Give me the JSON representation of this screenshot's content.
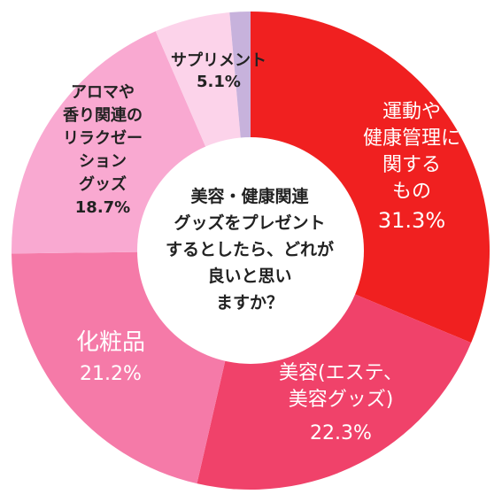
{
  "chart_data": {
    "type": "pie",
    "variant": "donut",
    "center_text": [
      "美容・健康関連",
      "グッズをプレゼント",
      "するとしたら、どれが",
      "良いと思い",
      "ますか？"
    ],
    "slices": [
      {
        "label_lines": [
          "運動や",
          "健康管理に",
          "関する",
          "もの"
        ],
        "value": 31.3,
        "value_text": "31.3%",
        "color": "#f02020"
      },
      {
        "label_lines": [
          "美容(エステ、",
          "美容グッズ)"
        ],
        "value": 22.3,
        "value_text": "22.3%",
        "color": "#f0426a"
      },
      {
        "label_lines": [
          "化粧品"
        ],
        "value": 21.2,
        "value_text": "21.2%",
        "color": "#f57aa8"
      },
      {
        "label_lines": [
          "アロマや",
          "香り関連の",
          "リラクゼー",
          "ション",
          "グッズ"
        ],
        "value": 18.7,
        "value_text": "18.7%",
        "color": "#f9a9d1"
      },
      {
        "label_lines": [
          "サプリメント"
        ],
        "value": 5.1,
        "value_text": "5.1%",
        "color": "#fcd3ea"
      },
      {
        "label_lines": [],
        "value": 1.4,
        "value_text": "",
        "color": "#c7b2dc"
      }
    ]
  }
}
